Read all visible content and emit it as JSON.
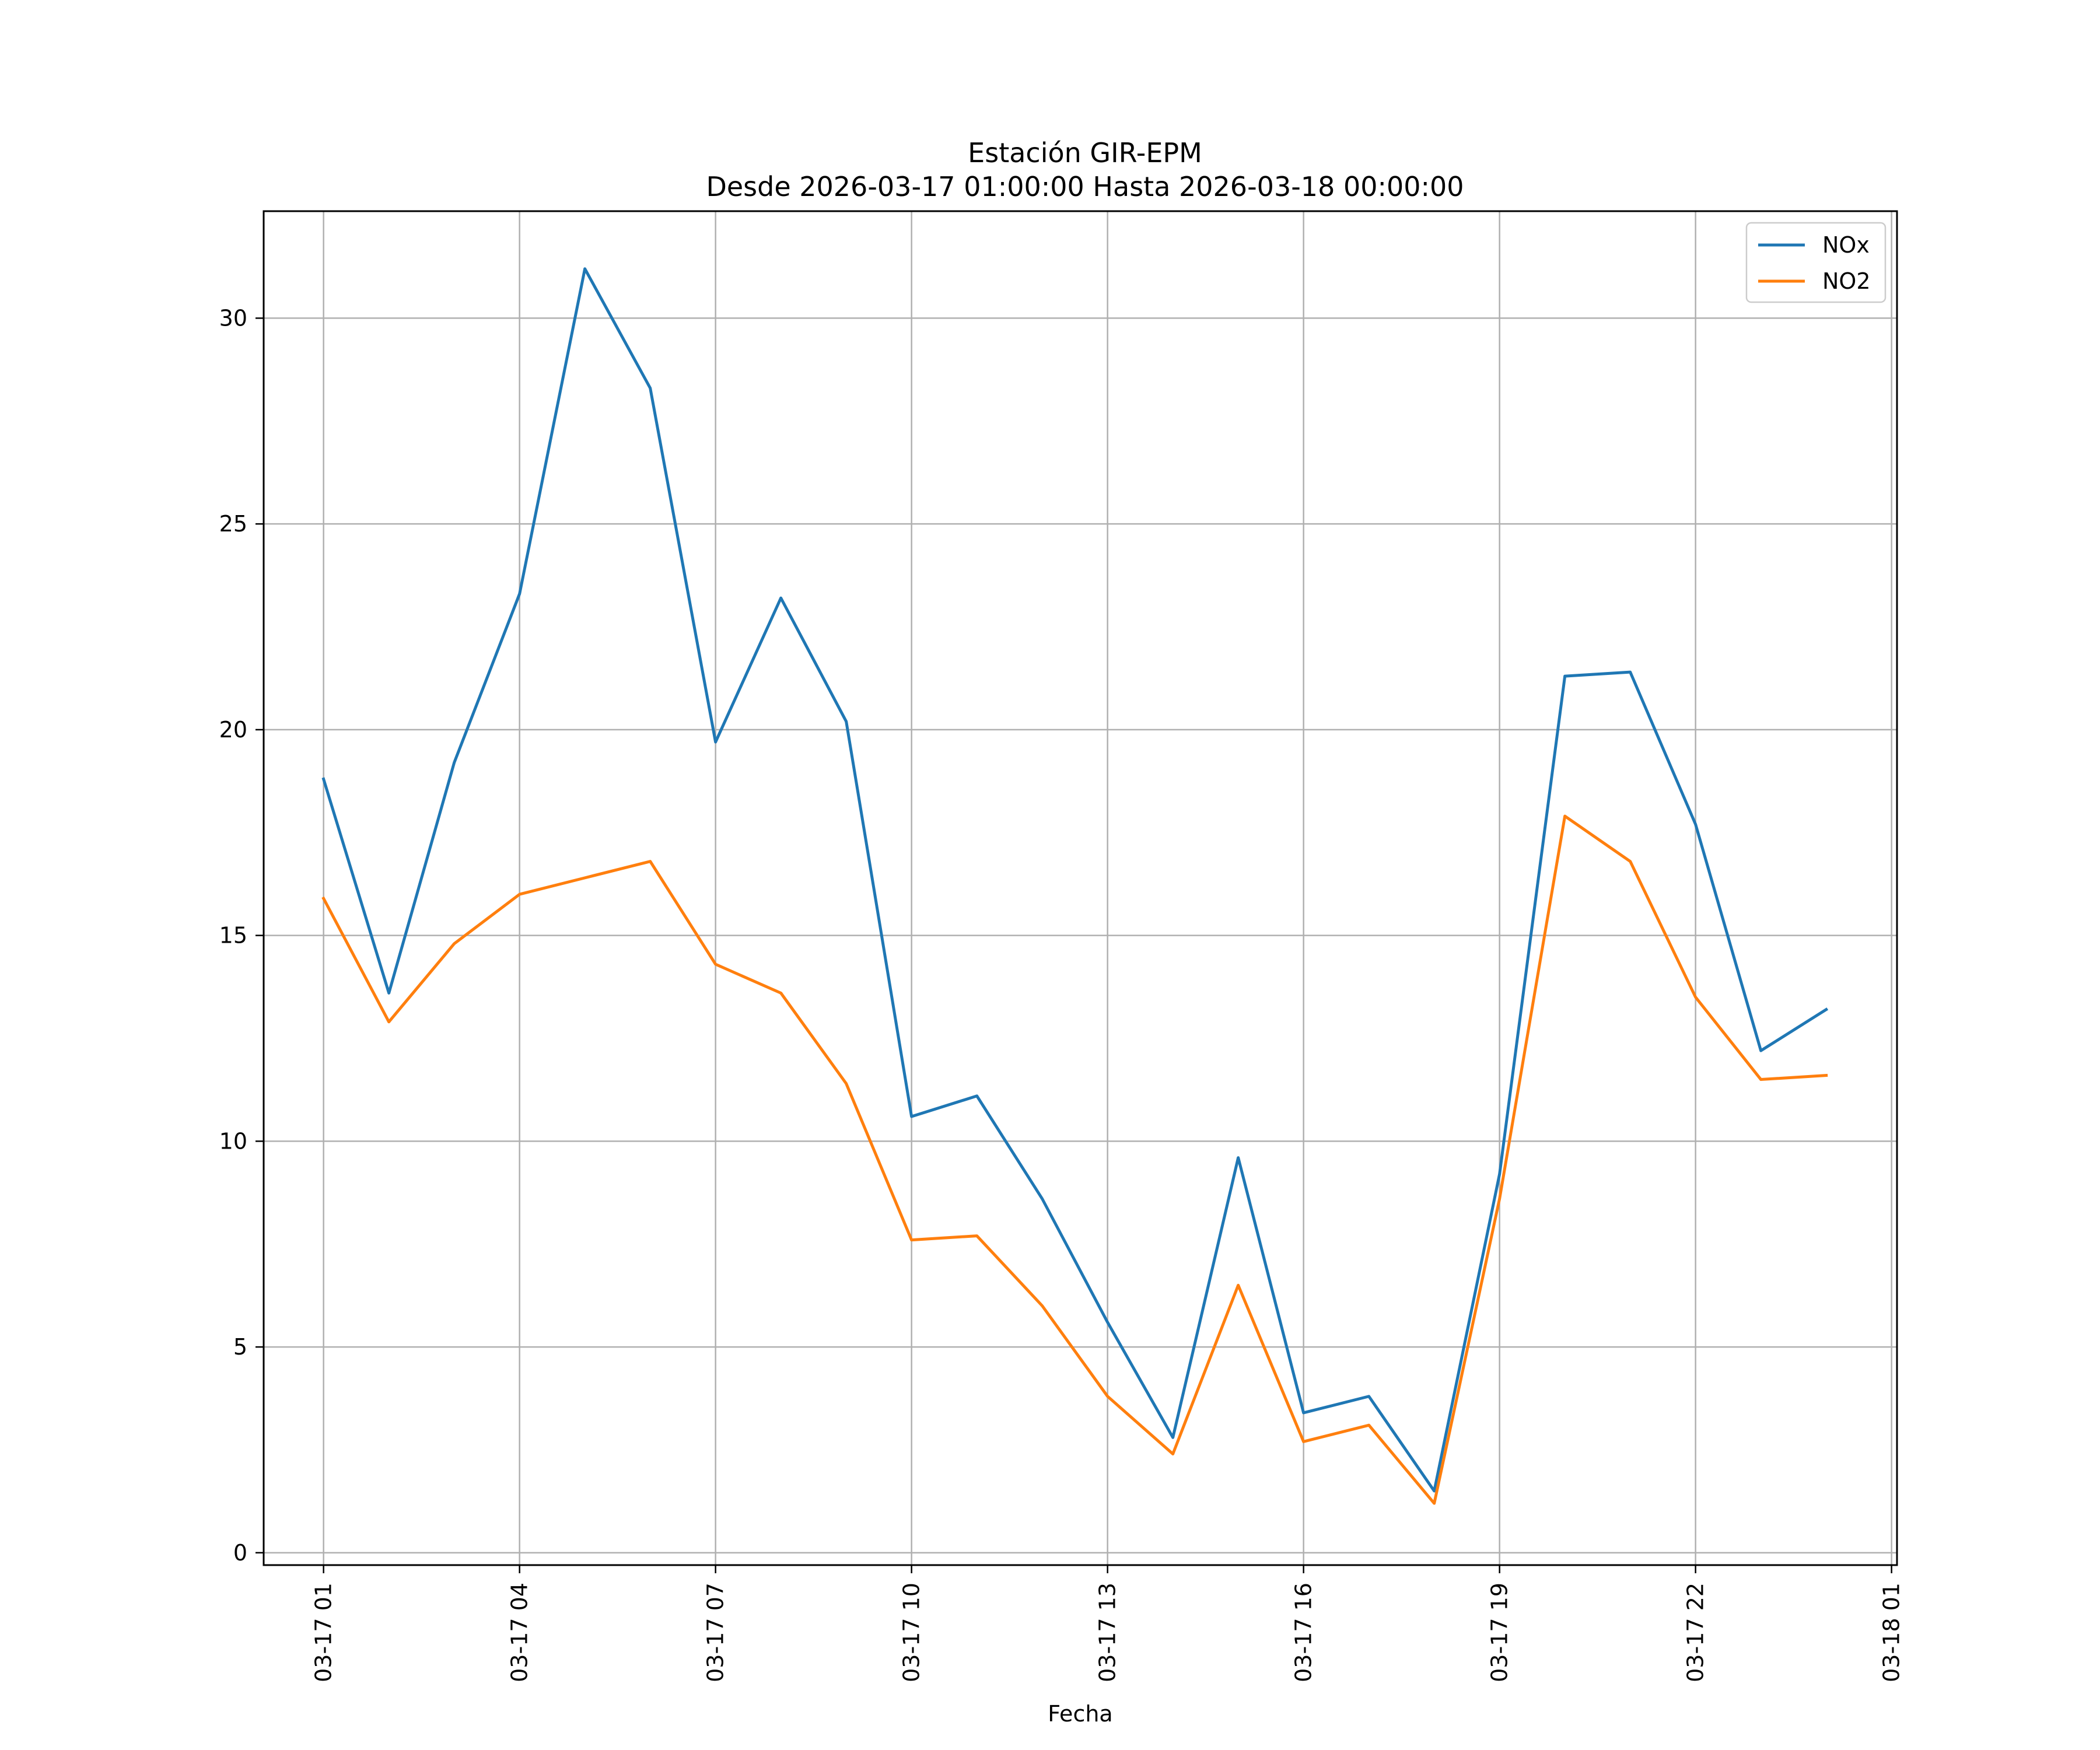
{
  "chart_data": {
    "type": "line",
    "title": "Estación GIR-EPM",
    "subtitle": "Desde 2026-03-17 01:00:00 Hasta 2026-03-18 00:00:00",
    "xlabel": "Fecha",
    "ylabel": "",
    "x": [
      "03-17 01",
      "03-17 02",
      "03-17 03",
      "03-17 04",
      "03-17 05",
      "03-17 06",
      "03-17 07",
      "03-17 08",
      "03-17 09",
      "03-17 10",
      "03-17 11",
      "03-17 12",
      "03-17 13",
      "03-17 14",
      "03-17 15",
      "03-17 16",
      "03-17 17",
      "03-17 18",
      "03-17 19",
      "03-17 20",
      "03-17 21",
      "03-17 22",
      "03-17 23",
      "03-18 00"
    ],
    "x_range": [
      "03-17 00:05",
      "03-18 01:05"
    ],
    "x_ticks": [
      "03-17 01",
      "03-17 04",
      "03-17 07",
      "03-17 10",
      "03-17 13",
      "03-17 16",
      "03-17 19",
      "03-17 22",
      "03-18 01"
    ],
    "ylim": [
      -0.3,
      32.6
    ],
    "y_ticks": [
      0,
      5,
      10,
      15,
      20,
      25,
      30
    ],
    "grid": true,
    "legend_position": "top-right",
    "series": [
      {
        "name": "NOx",
        "color": "#1f77b4",
        "values": [
          18.8,
          13.6,
          19.2,
          23.3,
          31.2,
          28.3,
          19.7,
          23.2,
          20.2,
          10.6,
          11.1,
          8.6,
          5.6,
          2.8,
          9.6,
          3.4,
          3.8,
          1.5,
          9.2,
          21.3,
          21.4,
          17.7,
          12.2,
          13.2
        ]
      },
      {
        "name": "NO2",
        "color": "#ff7f0e",
        "values": [
          15.9,
          12.9,
          14.8,
          16.0,
          16.4,
          16.8,
          14.3,
          13.6,
          11.4,
          7.6,
          7.7,
          6.0,
          3.8,
          2.4,
          6.5,
          2.7,
          3.1,
          1.2,
          8.6,
          17.9,
          16.8,
          13.5,
          11.5,
          11.6
        ]
      }
    ]
  }
}
